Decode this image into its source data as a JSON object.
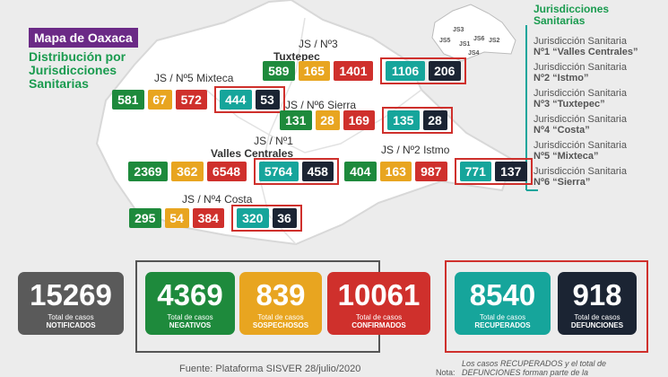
{
  "header": {
    "title": "Mapa de Oaxaca",
    "subtitle": [
      "Distribución por",
      "Jurisdicciones",
      "Sanitarias"
    ]
  },
  "jurisdictions": [
    {
      "label": "JS / Nº3",
      "name": "Tuxtepec",
      "values": [
        "589",
        "165",
        "1401",
        "1106",
        "206"
      ]
    },
    {
      "label": "JS / Nº5 Mixteca",
      "name": "",
      "values": [
        "581",
        "67",
        "572",
        "444",
        "53"
      ]
    },
    {
      "label": "JS / Nº6 Sierra",
      "name": "",
      "values": [
        "131",
        "28",
        "169",
        "135",
        "28"
      ]
    },
    {
      "label": "JS / Nº1",
      "name": "Valles Centrales",
      "values": [
        "2369",
        "362",
        "6548",
        "5764",
        "458"
      ]
    },
    {
      "label": "JS / Nº2 Istmo",
      "name": "",
      "values": [
        "404",
        "163",
        "987",
        "771",
        "137"
      ]
    },
    {
      "label": "JS / Nº4 Costa",
      "name": "",
      "values": [
        "295",
        "54",
        "384",
        "320",
        "36"
      ]
    }
  ],
  "legend": {
    "title": [
      "Jurisdicciones",
      "Sanitarias"
    ],
    "items": [
      {
        "prefix": "Jurisdicción Sanitaria",
        "name": "Nº1 “Valles Centrales”"
      },
      {
        "prefix": "Jurisdicción Sanitaria",
        "name": "Nº2 “Istmo”"
      },
      {
        "prefix": "Jurisdicción Sanitaria",
        "name": "Nº3 “Tuxtepec”"
      },
      {
        "prefix": "Jurisdicción Sanitaria",
        "name": "Nº4 “Costa”"
      },
      {
        "prefix": "Jurisdicción Sanitaria",
        "name": "Nº5 “Mixteca”"
      },
      {
        "prefix": "Jurisdicción Sanitaria",
        "name": "Nº6 “Sierra”"
      }
    ],
    "minimap": [
      "JS3",
      "JS5",
      "JS1",
      "JS6",
      "JS2",
      "JS4"
    ]
  },
  "totals": [
    {
      "value": "15269",
      "caption": "Total de casos",
      "label": "NOTIFICADOS"
    },
    {
      "value": "4369",
      "caption": "Total de casos",
      "label": "NEGATIVOS"
    },
    {
      "value": "839",
      "caption": "Total de casos",
      "label": "SOSPECHOSOS"
    },
    {
      "value": "10061",
      "caption": "Total de casos",
      "label": "CONFIRMADOS"
    },
    {
      "value": "8540",
      "caption": "Total de casos",
      "label": "RECUPERADOS"
    },
    {
      "value": "918",
      "caption": "Total de casos",
      "label": "DEFUNCIONES"
    }
  ],
  "footer": {
    "source": "Fuente: Plataforma SISVER 28/julio/2020",
    "note_label": "Nota:",
    "note": [
      "Los casos RECUPERADOS y el total de",
      "DEFUNCIONES forman parte de la"
    ]
  }
}
